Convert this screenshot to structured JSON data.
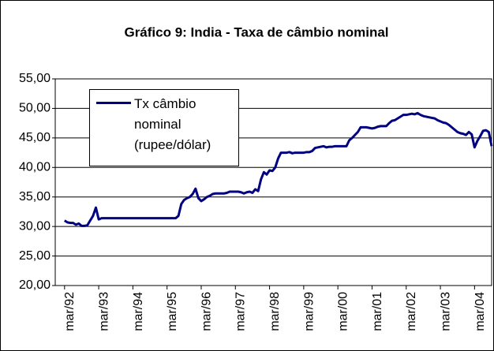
{
  "chart_data": {
    "type": "line",
    "title": "Gráfico 9: India - Taxa de câmbio nominal",
    "categories": [
      null,
      null,
      "mar/92",
      null,
      null,
      null,
      null,
      null,
      null,
      null,
      null,
      null,
      null,
      null,
      "mar/93",
      null,
      null,
      null,
      null,
      null,
      null,
      null,
      null,
      null,
      null,
      null,
      "mar/94",
      null,
      null,
      null,
      null,
      null,
      null,
      null,
      null,
      null,
      null,
      null,
      "mar/95",
      null,
      null,
      null,
      null,
      null,
      null,
      null,
      null,
      null,
      null,
      null,
      "mar/96",
      null,
      null,
      null,
      null,
      null,
      null,
      null,
      null,
      null,
      null,
      null,
      "mar/97",
      null,
      null,
      null,
      null,
      null,
      null,
      null,
      null,
      null,
      null,
      null,
      "mar/98",
      null,
      null,
      null,
      null,
      null,
      null,
      null,
      null,
      null,
      null,
      null,
      "mar/99",
      null,
      null,
      null,
      null,
      null,
      null,
      null,
      null,
      null,
      null,
      null,
      "mar/00",
      null,
      null,
      null,
      null,
      null,
      null,
      null,
      null,
      null,
      null,
      null,
      "mar/01",
      null,
      null,
      null,
      null,
      null,
      null,
      null,
      null,
      null,
      null,
      null,
      "mar/02",
      null,
      null,
      null,
      null,
      null,
      null,
      null,
      null,
      null,
      null,
      null,
      "mar/03",
      null,
      null,
      null,
      null,
      null,
      null,
      null,
      null,
      null,
      null,
      null,
      "mar/04",
      null,
      null,
      null,
      null
    ],
    "series": [
      {
        "name": "Tx câmbio nominal (rupee/dólar)",
        "color": "#000080",
        "values": [
          31.0,
          30.7,
          30.6,
          30.6,
          30.3,
          30.5,
          30.1,
          30.1,
          30.2,
          31.0,
          31.8,
          33.2,
          31.2,
          31.4,
          31.4,
          31.4,
          31.4,
          31.4,
          31.4,
          31.4,
          31.4,
          31.4,
          31.4,
          31.4,
          31.4,
          31.4,
          31.4,
          31.4,
          31.4,
          31.4,
          31.4,
          31.4,
          31.4,
          31.4,
          31.4,
          31.4,
          31.4,
          31.4,
          31.4,
          31.4,
          31.8,
          33.8,
          34.5,
          34.8,
          35.0,
          35.5,
          36.4,
          34.8,
          34.3,
          34.6,
          35.0,
          35.2,
          35.5,
          35.6,
          35.6,
          35.6,
          35.6,
          35.7,
          35.9,
          35.9,
          35.9,
          35.9,
          35.8,
          35.6,
          35.8,
          35.9,
          35.7,
          36.3,
          36.0,
          38.0,
          39.2,
          38.8,
          39.5,
          39.4,
          40.0,
          41.5,
          42.5,
          42.5,
          42.5,
          42.6,
          42.4,
          42.5,
          42.5,
          42.5,
          42.5,
          42.6,
          42.6,
          42.8,
          43.3,
          43.4,
          43.5,
          43.6,
          43.4,
          43.5,
          43.5,
          43.6,
          43.6,
          43.6,
          43.6,
          43.6,
          44.6,
          45.0,
          45.5,
          46.0,
          46.8,
          46.8,
          46.8,
          46.7,
          46.6,
          46.7,
          46.9,
          47.0,
          47.0,
          47.0,
          47.5,
          47.9,
          48.0,
          48.3,
          48.6,
          48.9,
          48.9,
          49.0,
          49.1,
          49.0,
          49.2,
          48.9,
          48.7,
          48.6,
          48.5,
          48.4,
          48.3,
          48.0,
          47.8,
          47.6,
          47.5,
          47.2,
          46.8,
          46.4,
          46.0,
          45.8,
          45.7,
          45.5,
          46.0,
          45.6,
          43.4,
          44.5,
          45.3,
          46.2,
          46.3,
          46.0,
          43.6
        ]
      }
    ],
    "ylim": [
      20,
      55
    ],
    "yticks": [
      {
        "value": 20,
        "label": "20,00"
      },
      {
        "value": 25,
        "label": "25,00"
      },
      {
        "value": 30,
        "label": "30,00"
      },
      {
        "value": 35,
        "label": "35,00"
      },
      {
        "value": 40,
        "label": "40,00"
      },
      {
        "value": 45,
        "label": "45,00"
      },
      {
        "value": 50,
        "label": "50,00"
      },
      {
        "value": 55,
        "label": "55,00"
      }
    ],
    "grid": true
  }
}
